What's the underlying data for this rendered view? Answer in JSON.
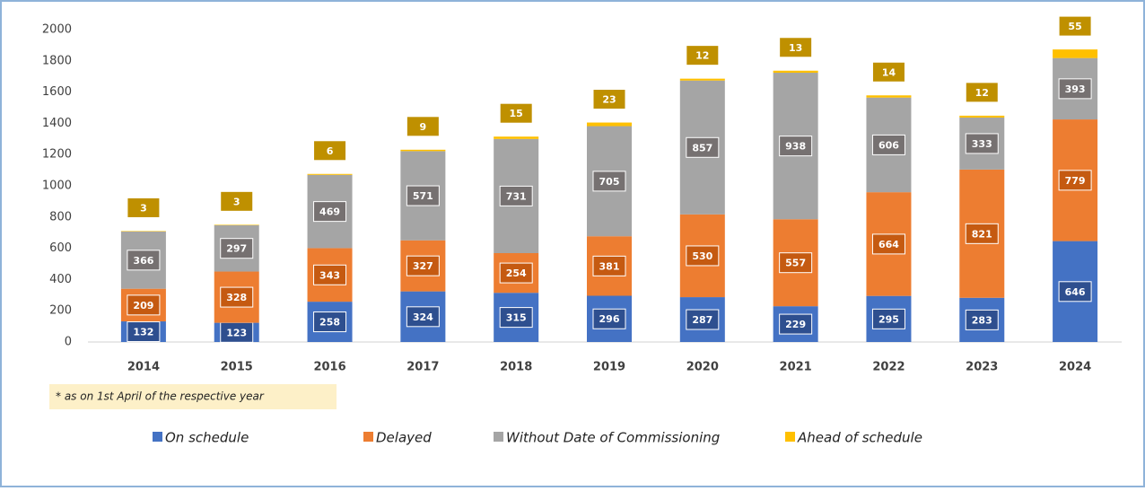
{
  "chart_data": {
    "type": "stacked_bar",
    "categories": [
      "2014",
      "2015",
      "2016",
      "2017",
      "2018",
      "2019",
      "2020",
      "2021",
      "2022",
      "2023",
      "2024"
    ],
    "series": [
      {
        "name": "On schedule",
        "color": "#4472c4",
        "label_color": "#2e4f8f",
        "values": [
          132,
          123,
          258,
          324,
          315,
          296,
          287,
          229,
          295,
          283,
          646
        ]
      },
      {
        "name": "Delayed",
        "color": "#ed7d31",
        "label_color": "#c55a11",
        "values": [
          209,
          328,
          343,
          327,
          254,
          381,
          530,
          557,
          664,
          821,
          779
        ]
      },
      {
        "name": "Without Date of Commissioning",
        "color": "#a5a5a5",
        "label_color": "#767171",
        "values": [
          366,
          297,
          469,
          571,
          731,
          705,
          857,
          938,
          606,
          333,
          393
        ]
      },
      {
        "name": "Ahead of schedule",
        "color": "#ffc000",
        "label_color": "#bf9000",
        "values": [
          3,
          3,
          6,
          9,
          15,
          23,
          12,
          13,
          14,
          12,
          55
        ]
      }
    ],
    "ylim": [
      0,
      2000
    ],
    "yticks": [
      0,
      200,
      400,
      600,
      800,
      1000,
      1200,
      1400,
      1600,
      1800,
      2000
    ],
    "footnote": "* as on 1st April of the respective year"
  }
}
